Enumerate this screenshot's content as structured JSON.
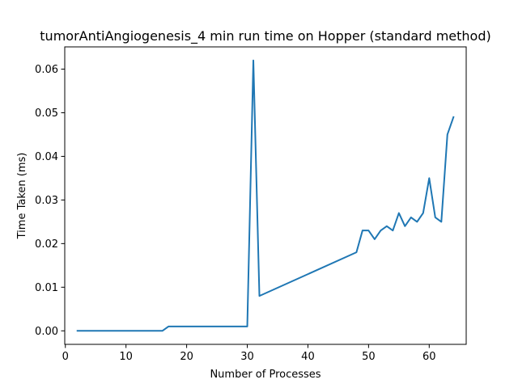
{
  "chart_data": {
    "type": "line",
    "title": "tumorAntiAngiogenesis_4 min run time on Hopper (standard method)",
    "xlabel": "Number of Processes",
    "ylabel": "Time Taken (ms)",
    "xlim": [
      -0.1,
      66.1
    ],
    "ylim": [
      -0.0031,
      0.0651
    ],
    "xticks": [
      0,
      10,
      20,
      30,
      40,
      50,
      60
    ],
    "yticks": [
      0.0,
      0.01,
      0.02,
      0.03,
      0.04,
      0.05,
      0.06
    ],
    "ytick_labels": [
      "0.00",
      "0.01",
      "0.02",
      "0.03",
      "0.04",
      "0.05",
      "0.06"
    ],
    "grid": false,
    "color": "#1f77b4",
    "series": [
      {
        "x": [
          2,
          3,
          4,
          5,
          6,
          7,
          8,
          9,
          10,
          11,
          12,
          13,
          14,
          15,
          16,
          17,
          18,
          19,
          20,
          21,
          22,
          23,
          24,
          25,
          26,
          27,
          28,
          29,
          30,
          31,
          32,
          48,
          49,
          50,
          51,
          52,
          53,
          54,
          55,
          56,
          57,
          58,
          59,
          60,
          61,
          62,
          63,
          64
        ],
        "y": [
          0.0,
          0.0,
          0.0,
          0.0,
          0.0,
          0.0,
          0.0,
          0.0,
          0.0,
          0.0,
          0.0,
          0.0,
          0.0,
          0.0,
          0.0,
          0.001,
          0.001,
          0.001,
          0.001,
          0.001,
          0.001,
          0.001,
          0.001,
          0.001,
          0.001,
          0.001,
          0.001,
          0.001,
          0.001,
          0.062,
          0.008,
          0.018,
          0.023,
          0.023,
          0.021,
          0.023,
          0.024,
          0.023,
          0.027,
          0.024,
          0.026,
          0.025,
          0.027,
          0.035,
          0.026,
          0.025,
          0.045,
          0.049
        ]
      }
    ]
  }
}
